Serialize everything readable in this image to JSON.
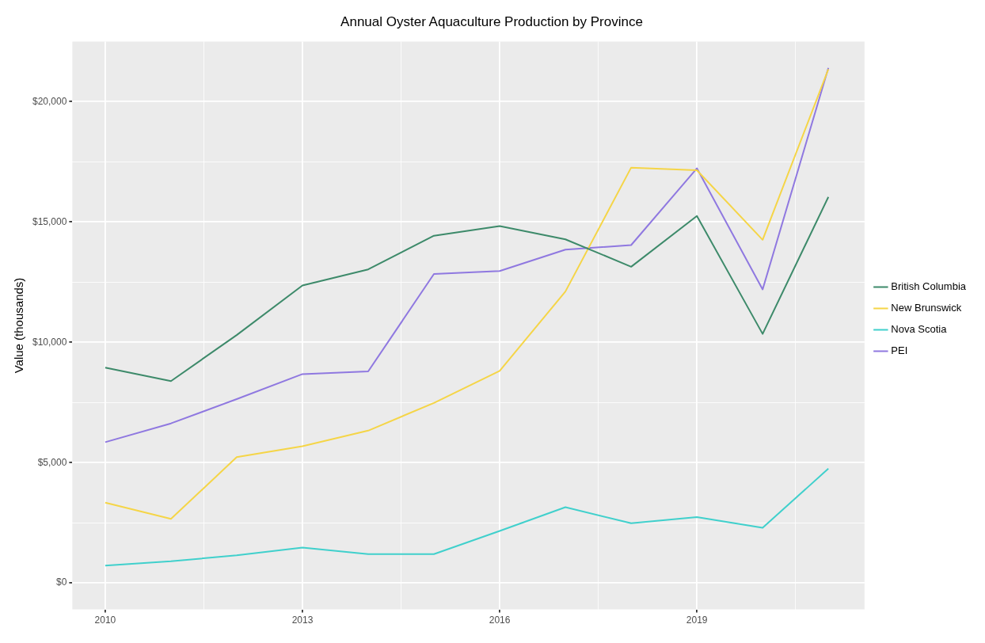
{
  "chart_data": {
    "type": "line",
    "title": "Annual Oyster Aquaculture Production by Province",
    "ylabel": "Value (thousands)",
    "x": [
      2010,
      2011,
      2012,
      2013,
      2014,
      2015,
      2016,
      2017,
      2018,
      2019,
      2020,
      2021
    ],
    "series": [
      {
        "name": "British Columbia",
        "color": "#3d8a6a",
        "values": [
          8950,
          8390,
          10300,
          12360,
          13030,
          14430,
          14830,
          14280,
          13140,
          15250,
          10350,
          16040
        ]
      },
      {
        "name": "New Brunswick",
        "color": "#f5d547",
        "values": [
          3340,
          2660,
          5230,
          5680,
          6330,
          7480,
          8810,
          12110,
          17260,
          17150,
          14260,
          21350
        ]
      },
      {
        "name": "Nova Scotia",
        "color": "#40d0cc",
        "values": [
          720,
          900,
          1150,
          1470,
          1200,
          1200,
          2160,
          3150,
          2480,
          2740,
          2290,
          4750
        ]
      },
      {
        "name": "PEI",
        "color": "#8f78e0",
        "values": [
          5850,
          6630,
          7640,
          8680,
          8790,
          12840,
          12960,
          13850,
          14040,
          17230,
          12200,
          21400
        ]
      }
    ],
    "xlim": [
      2009.5,
      2021.55
    ],
    "xticks": [
      2010,
      2013,
      2016,
      2019,
      {
        "value": 2011.5,
        "label": null
      },
      {
        "value": 2014.5,
        "label": null
      },
      {
        "value": 2017.5,
        "label": null
      },
      {
        "value": 2020.5,
        "label": null
      }
    ],
    "ylim": [
      -1100,
      22500
    ],
    "yticks": [
      {
        "value": 0,
        "label": "$0"
      },
      {
        "value": 5000,
        "label": "$5,000"
      },
      {
        "value": 10000,
        "label": "$10,000"
      },
      {
        "value": 15000,
        "label": "$15,000"
      },
      {
        "value": 20000,
        "label": "$20,000"
      },
      {
        "value": 2500,
        "label": null
      },
      {
        "value": 7500,
        "label": null
      },
      {
        "value": 12500,
        "label": null
      },
      {
        "value": 17500,
        "label": null
      }
    ],
    "grid": true,
    "legend": "right",
    "marker": "none",
    "line_style": "solid"
  }
}
